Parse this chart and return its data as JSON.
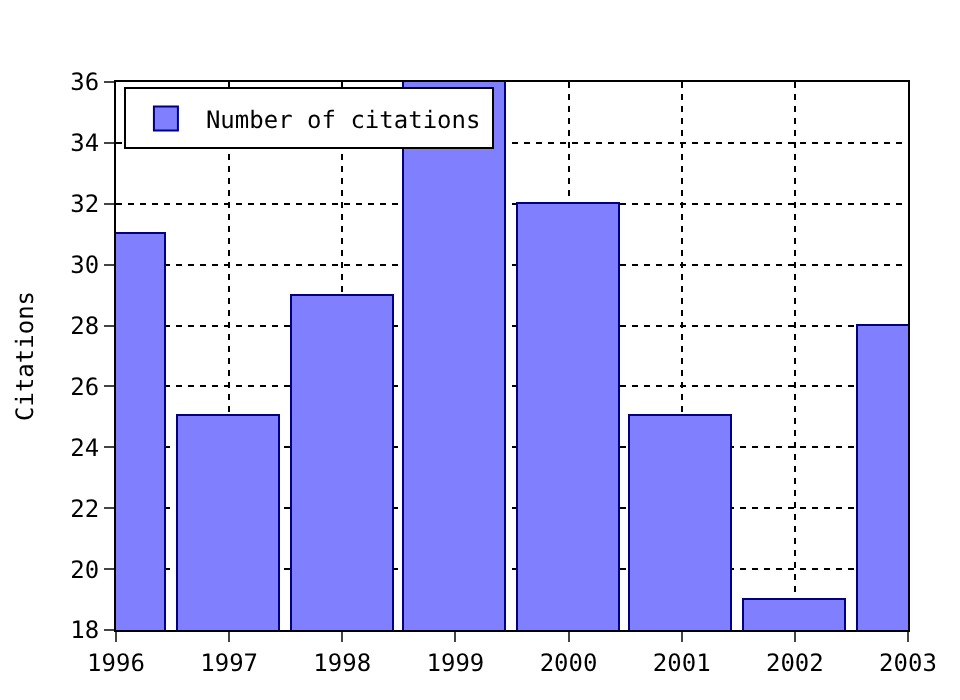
{
  "chart_data": {
    "type": "bar",
    "ylabel": "Citations",
    "x": [
      1996,
      1997,
      1998,
      1999,
      2000,
      2001,
      2002,
      2003
    ],
    "series": [
      {
        "name": "Number of citations",
        "color": "#8080ff",
        "values": [
          31,
          25,
          29,
          36,
          32,
          25,
          19,
          28
        ]
      }
    ],
    "xlim": [
      1996,
      2003
    ],
    "xticks": [
      1996,
      1997,
      1998,
      1999,
      2000,
      2001,
      2002,
      2003
    ],
    "ylim": [
      18,
      36
    ],
    "yticks": [
      18,
      20,
      22,
      24,
      26,
      28,
      30,
      32,
      34,
      36
    ],
    "grid": true,
    "legend": "top left"
  }
}
